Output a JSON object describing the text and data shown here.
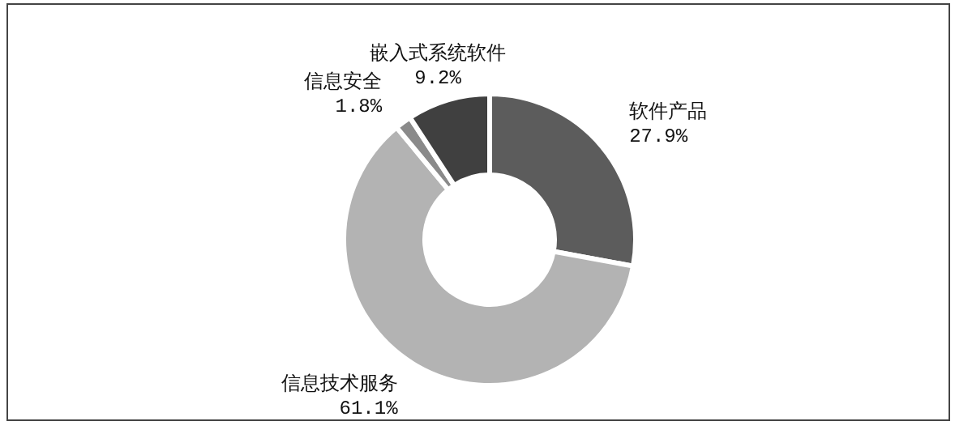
{
  "chart_data": {
    "type": "donut",
    "categories": [
      "软件产品",
      "信息技术服务",
      "信息安全",
      "嵌入式系统软件"
    ],
    "values": [
      27.9,
      61.1,
      1.8,
      9.2
    ],
    "colors": [
      "#5c5c5c",
      "#b3b3b3",
      "#8a8a8a",
      "#404040"
    ],
    "value_labels": [
      "27.9%",
      "61.1%",
      "1.8%",
      "9.2%"
    ]
  }
}
